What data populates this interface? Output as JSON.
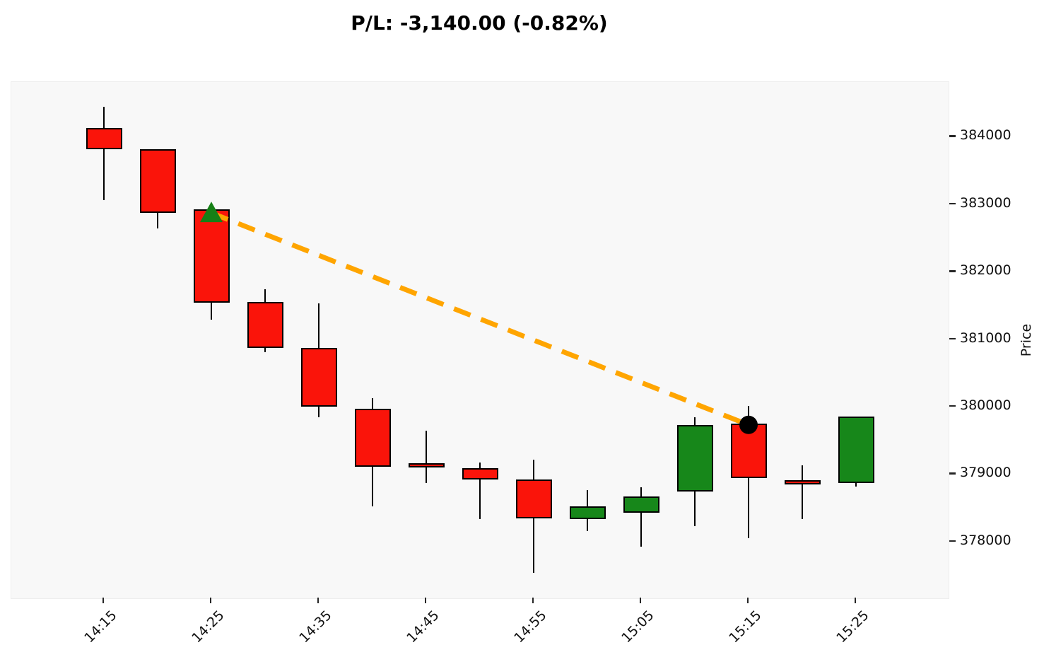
{
  "chart_data": {
    "type": "candlestick",
    "title": "P/L: -3,140.00 (-0.82%)",
    "ylabel": "Price",
    "x_ticklabels": [
      "14:15",
      "14:25",
      "14:35",
      "14:45",
      "14:55",
      "15:05",
      "15:15",
      "15:25"
    ],
    "y_ticks": [
      378000,
      379000,
      380000,
      381000,
      382000,
      383000,
      384000
    ],
    "ylim": [
      377160,
      384810
    ],
    "grid": false,
    "candles": [
      {
        "time": "14:15",
        "open": 384130,
        "high": 384440,
        "low": 383060,
        "close": 383810
      },
      {
        "time": "14:20",
        "open": 383810,
        "high": 383810,
        "low": 382640,
        "close": 382870
      },
      {
        "time": "14:25",
        "open": 382920,
        "high": 382920,
        "low": 381290,
        "close": 381540
      },
      {
        "time": "14:30",
        "open": 381550,
        "high": 381740,
        "low": 380810,
        "close": 380870
      },
      {
        "time": "14:35",
        "open": 380870,
        "high": 381530,
        "low": 379840,
        "close": 380000
      },
      {
        "time": "14:40",
        "open": 379970,
        "high": 380130,
        "low": 378520,
        "close": 379110
      },
      {
        "time": "14:45",
        "open": 379160,
        "high": 379640,
        "low": 378870,
        "close": 379150
      },
      {
        "time": "14:50",
        "open": 379090,
        "high": 379170,
        "low": 378330,
        "close": 378920
      },
      {
        "time": "14:55",
        "open": 378920,
        "high": 379210,
        "low": 377540,
        "close": 378340
      },
      {
        "time": "15:00",
        "open": 378330,
        "high": 378760,
        "low": 378160,
        "close": 378520
      },
      {
        "time": "15:05",
        "open": 378430,
        "high": 378810,
        "low": 377920,
        "close": 378670
      },
      {
        "time": "15:10",
        "open": 378740,
        "high": 379840,
        "low": 378230,
        "close": 379730
      },
      {
        "time": "15:15",
        "open": 379750,
        "high": 380010,
        "low": 378050,
        "close": 378940
      },
      {
        "time": "15:20",
        "open": 378910,
        "high": 379130,
        "low": 378330,
        "close": 378890
      },
      {
        "time": "15:25",
        "open": 378870,
        "high": 379850,
        "low": 378820,
        "close": 379850
      }
    ],
    "trade": {
      "entry": {
        "time": "14:25",
        "price": 382870,
        "marker": "triangle-up"
      },
      "exit": {
        "time": "15:15",
        "price": 379730,
        "marker": "circle"
      },
      "pl_value": "-3,140.00",
      "pl_percent": "-0.82%"
    },
    "colors": {
      "up": "#17871a",
      "down": "#fa140a",
      "wick": "#000000",
      "entry_marker": "#168016",
      "exit_marker": "#000000",
      "trade_line": "#ffa500",
      "plot_bg": "#f8f8f8",
      "fig_bg": "#ffffff"
    }
  }
}
